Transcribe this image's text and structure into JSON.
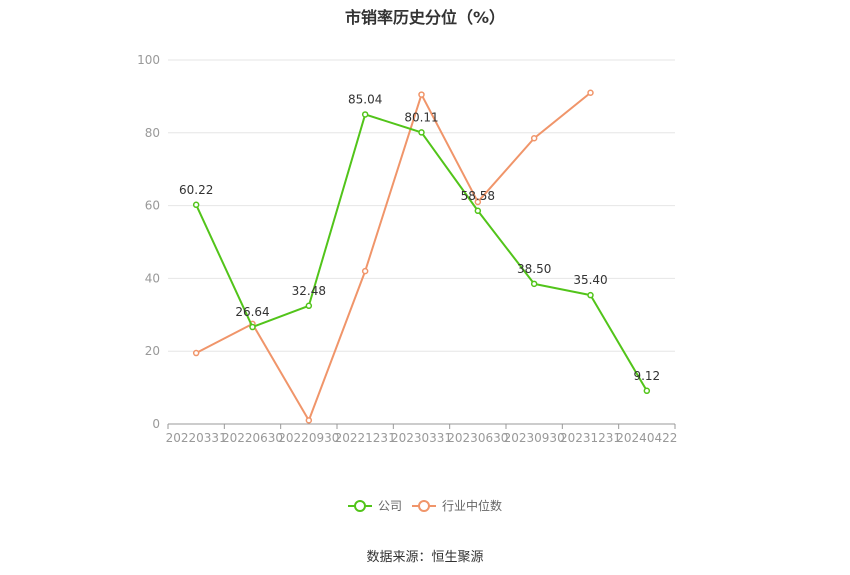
{
  "chart_data": {
    "type": "line",
    "title": "市销率历史分位（%）",
    "categories": [
      "20220331",
      "20220630",
      "20220930",
      "20221231",
      "20230331",
      "20230630",
      "20230930",
      "20231231",
      "20240422"
    ],
    "ylim": [
      0,
      100
    ],
    "yticks": [
      0,
      20,
      40,
      60,
      80,
      100
    ],
    "grid": true,
    "legend_position": "bottom",
    "series": [
      {
        "name": "公司",
        "color": "#52c41a",
        "values": [
          60.22,
          26.64,
          32.48,
          85.04,
          80.11,
          58.58,
          38.5,
          35.4,
          9.12
        ],
        "labels": [
          "60.22",
          "26.64",
          "32.48",
          "85.04",
          "80.11",
          "58.58",
          "38.50",
          "35.40",
          "9.12"
        ]
      },
      {
        "name": "行业中位数",
        "color": "#f0956a",
        "values": [
          19.5,
          27.5,
          1.0,
          42.0,
          90.5,
          61.0,
          78.5,
          91.0,
          null
        ]
      }
    ]
  },
  "source": "数据来源：恒生聚源"
}
